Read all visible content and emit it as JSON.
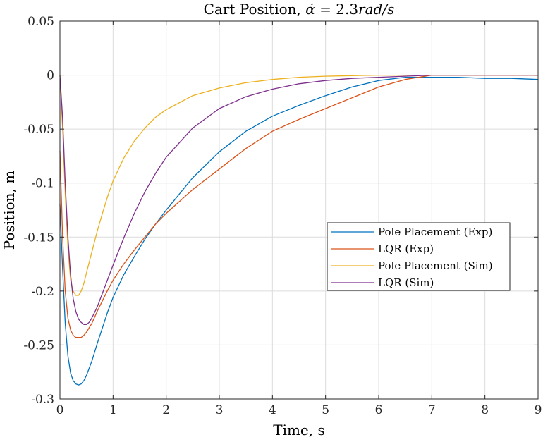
{
  "chart_data": {
    "type": "line",
    "title": "Cart Position, α̇ = 2.3rad/s",
    "title_prefix": "Cart Position, ",
    "title_var": "α̇",
    "title_eq": " = 2.3",
    "title_unit": "rad/s",
    "xlabel": "Time, s",
    "ylabel": "Position, m",
    "xlim": [
      0,
      9
    ],
    "ylim": [
      -0.3,
      0.05
    ],
    "grid": true,
    "legend_position": "right-center",
    "x_ticks": [
      "0",
      "1",
      "2",
      "3",
      "4",
      "5",
      "6",
      "7",
      "8",
      "9"
    ],
    "y_ticks": [
      "0.05",
      "0",
      "-0.05",
      "-0.1",
      "-0.15",
      "-0.2",
      "-0.25",
      "-0.3"
    ],
    "series": [
      {
        "name": "Pole Placement (Exp)",
        "color": "#0072BD",
        "x": [
          0,
          0.05,
          0.1,
          0.15,
          0.2,
          0.25,
          0.3,
          0.35,
          0.4,
          0.45,
          0.5,
          0.6,
          0.7,
          0.8,
          0.9,
          1.0,
          1.2,
          1.4,
          1.6,
          1.8,
          2.0,
          2.5,
          3.0,
          3.5,
          4.0,
          4.5,
          5.0,
          5.5,
          6.0,
          6.5,
          7.0,
          7.5,
          8.0,
          8.5,
          9.0
        ],
        "y": [
          -0.12,
          -0.18,
          -0.23,
          -0.26,
          -0.276,
          -0.283,
          -0.286,
          -0.287,
          -0.286,
          -0.283,
          -0.278,
          -0.265,
          -0.249,
          -0.234,
          -0.219,
          -0.206,
          -0.185,
          -0.168,
          -0.152,
          -0.138,
          -0.125,
          -0.095,
          -0.071,
          -0.052,
          -0.038,
          -0.028,
          -0.019,
          -0.011,
          -0.005,
          -0.002,
          -0.002,
          -0.002,
          -0.003,
          -0.003,
          -0.004
        ]
      },
      {
        "name": "LQR (Exp)",
        "color": "#D95319",
        "x": [
          0,
          0.05,
          0.1,
          0.15,
          0.2,
          0.25,
          0.3,
          0.35,
          0.4,
          0.45,
          0.5,
          0.6,
          0.7,
          0.8,
          0.9,
          1.0,
          1.2,
          1.4,
          1.6,
          1.8,
          2.0,
          2.5,
          3.0,
          3.5,
          4.0,
          4.5,
          5.0,
          5.5,
          6.0,
          6.5,
          7.0,
          7.5,
          8.0,
          8.5,
          9.0
        ],
        "y": [
          -0.07,
          -0.15,
          -0.2,
          -0.225,
          -0.236,
          -0.241,
          -0.243,
          -0.243,
          -0.243,
          -0.241,
          -0.238,
          -0.23,
          -0.219,
          -0.209,
          -0.199,
          -0.19,
          -0.175,
          -0.162,
          -0.15,
          -0.138,
          -0.128,
          -0.106,
          -0.087,
          -0.068,
          -0.052,
          -0.041,
          -0.031,
          -0.021,
          -0.011,
          -0.004,
          0.0,
          0.0,
          0.0,
          0.0,
          0.0
        ]
      },
      {
        "name": "Pole Placement (Sim)",
        "color": "#EDB120",
        "x": [
          0,
          0.05,
          0.1,
          0.15,
          0.2,
          0.25,
          0.3,
          0.35,
          0.4,
          0.45,
          0.5,
          0.6,
          0.7,
          0.8,
          0.9,
          1.0,
          1.2,
          1.4,
          1.6,
          1.8,
          2.0,
          2.5,
          3.0,
          3.5,
          4.0,
          4.5,
          5.0,
          5.5,
          6.0,
          6.5,
          7.0,
          7.5,
          8.0,
          8.5,
          9.0
        ],
        "y": [
          0.0,
          -0.05,
          -0.11,
          -0.16,
          -0.19,
          -0.2,
          -0.204,
          -0.204,
          -0.2,
          -0.193,
          -0.183,
          -0.164,
          -0.145,
          -0.128,
          -0.112,
          -0.098,
          -0.077,
          -0.061,
          -0.049,
          -0.039,
          -0.032,
          -0.019,
          -0.012,
          -0.007,
          -0.004,
          -0.002,
          -0.001,
          -0.0005,
          0.0,
          0.0,
          0.0,
          0.0,
          0.0,
          0.0,
          0.0
        ]
      },
      {
        "name": "LQR (Sim)",
        "color": "#7E2F8E",
        "x": [
          0,
          0.05,
          0.1,
          0.15,
          0.2,
          0.25,
          0.3,
          0.35,
          0.4,
          0.45,
          0.5,
          0.55,
          0.6,
          0.7,
          0.8,
          0.9,
          1.0,
          1.2,
          1.4,
          1.6,
          1.8,
          2.0,
          2.5,
          3.0,
          3.5,
          4.0,
          4.5,
          5.0,
          5.5,
          6.0,
          6.5,
          7.0,
          7.5,
          8.0,
          8.5,
          9.0
        ],
        "y": [
          0.0,
          -0.04,
          -0.1,
          -0.15,
          -0.185,
          -0.207,
          -0.219,
          -0.226,
          -0.229,
          -0.231,
          -0.231,
          -0.229,
          -0.225,
          -0.215,
          -0.202,
          -0.189,
          -0.176,
          -0.151,
          -0.128,
          -0.108,
          -0.091,
          -0.076,
          -0.049,
          -0.031,
          -0.02,
          -0.013,
          -0.008,
          -0.005,
          -0.003,
          -0.002,
          -0.001,
          0.0,
          0.0,
          0.0,
          0.0,
          0.0
        ]
      }
    ]
  }
}
